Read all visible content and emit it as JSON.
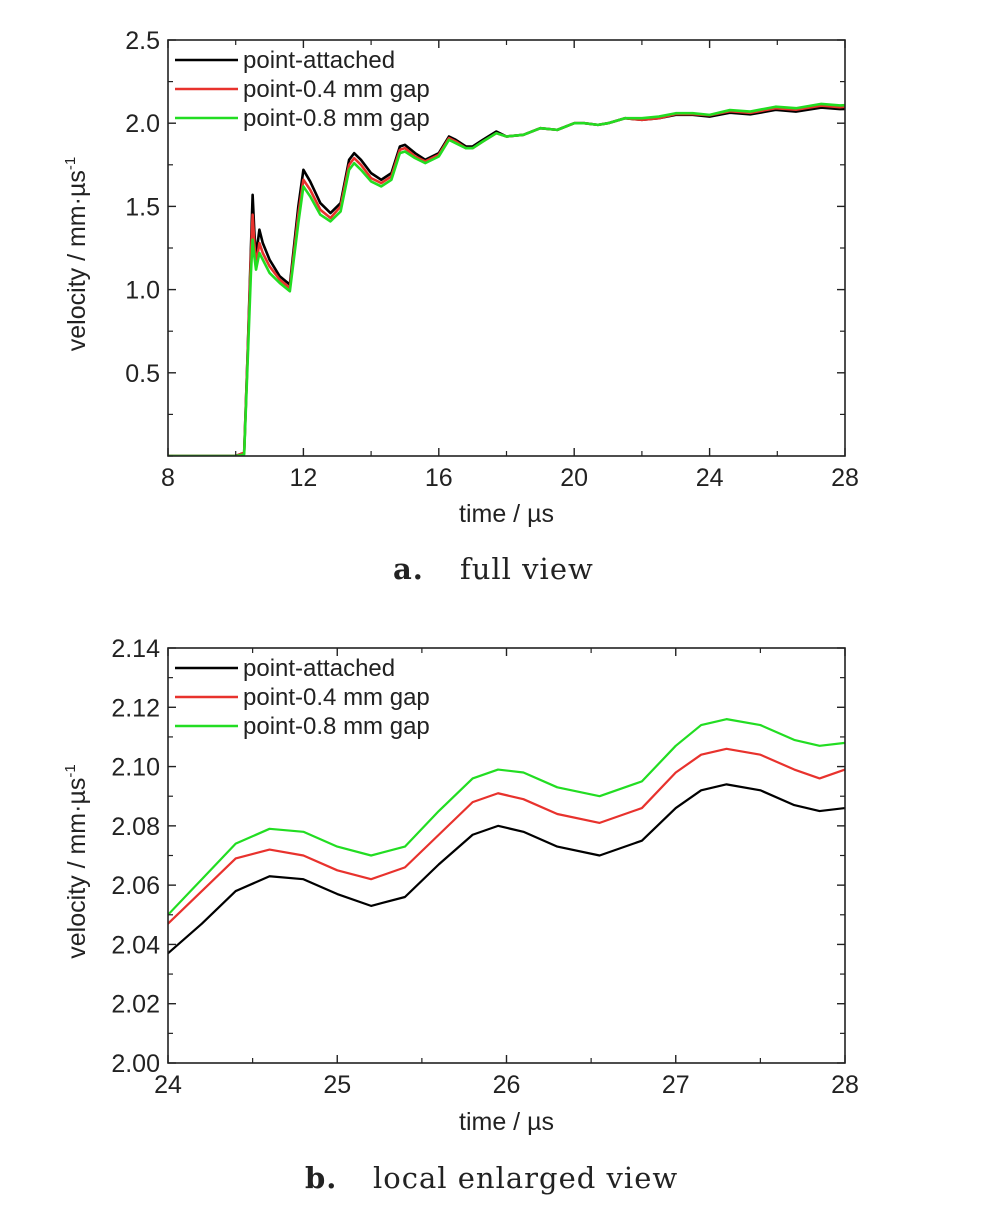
{
  "charts": [
    {
      "type": "line",
      "caption_letter": "a.",
      "caption_text": "full view",
      "xlabel": "time / µs",
      "ylabel": "velocity / mm·µs",
      "ylabel_superscript": "-1",
      "xlim": [
        8,
        28
      ],
      "ylim": [
        0,
        2.5
      ],
      "x_ticks": [
        "8",
        "12",
        "16",
        "20",
        "24",
        "28"
      ],
      "x_tick_values": [
        8,
        12,
        16,
        20,
        24,
        28
      ],
      "x_minor_step": 2,
      "y_ticks": [
        "0.5",
        "1.0",
        "1.5",
        "2.0",
        "2.5"
      ],
      "y_tick_values": [
        0.5,
        1.0,
        1.5,
        2.0,
        2.5
      ],
      "y_minor_step": 0.25,
      "legend_position": "top-left",
      "series": [
        {
          "name": "point-attached",
          "color": "#000000",
          "x": [
            8.0,
            10.0,
            10.25,
            10.35,
            10.45,
            10.5,
            10.55,
            10.6,
            10.7,
            10.8,
            11.0,
            11.3,
            11.6,
            11.85,
            12.0,
            12.2,
            12.5,
            12.8,
            13.1,
            13.35,
            13.5,
            13.7,
            14.0,
            14.3,
            14.6,
            14.85,
            15.0,
            15.3,
            15.6,
            16.0,
            16.3,
            16.5,
            16.8,
            17.0,
            17.3,
            17.7,
            18.0,
            18.5,
            19.0,
            19.5,
            20.0,
            20.3,
            20.7,
            21.0,
            21.5,
            22.0,
            22.5,
            23.0,
            23.5,
            24.0,
            24.6,
            25.2,
            25.95,
            26.55,
            27.3,
            27.85,
            28.0
          ],
          "y": [
            0.0,
            0.0,
            0.02,
            0.6,
            1.25,
            1.57,
            1.35,
            1.2,
            1.36,
            1.28,
            1.18,
            1.08,
            1.03,
            1.5,
            1.72,
            1.65,
            1.52,
            1.46,
            1.52,
            1.78,
            1.82,
            1.78,
            1.7,
            1.66,
            1.7,
            1.86,
            1.87,
            1.82,
            1.78,
            1.82,
            1.92,
            1.9,
            1.86,
            1.86,
            1.9,
            1.95,
            1.92,
            1.93,
            1.97,
            1.96,
            2.0,
            2.0,
            1.99,
            2.0,
            2.03,
            2.02,
            2.03,
            2.05,
            2.05,
            2.04,
            2.063,
            2.053,
            2.08,
            2.07,
            2.094,
            2.085,
            2.086
          ]
        },
        {
          "name": "point-0.4 mm gap",
          "color": "#e8322d",
          "x": [
            8.0,
            10.0,
            10.25,
            10.35,
            10.45,
            10.5,
            10.55,
            10.6,
            10.7,
            10.8,
            11.0,
            11.3,
            11.6,
            11.85,
            12.0,
            12.2,
            12.5,
            12.8,
            13.1,
            13.35,
            13.5,
            13.7,
            14.0,
            14.3,
            14.6,
            14.85,
            15.0,
            15.3,
            15.6,
            16.0,
            16.3,
            16.5,
            16.8,
            17.0,
            17.3,
            17.7,
            18.0,
            18.5,
            19.0,
            19.5,
            20.0,
            20.3,
            20.7,
            21.0,
            21.5,
            22.0,
            22.5,
            23.0,
            23.5,
            24.0,
            24.6,
            25.2,
            25.95,
            26.55,
            27.3,
            27.85,
            28.0
          ],
          "y": [
            0.0,
            0.0,
            0.02,
            0.6,
            1.2,
            1.45,
            1.28,
            1.15,
            1.28,
            1.22,
            1.14,
            1.06,
            1.01,
            1.45,
            1.66,
            1.6,
            1.48,
            1.43,
            1.5,
            1.75,
            1.79,
            1.75,
            1.67,
            1.64,
            1.68,
            1.84,
            1.85,
            1.8,
            1.77,
            1.81,
            1.91,
            1.89,
            1.85,
            1.85,
            1.89,
            1.94,
            1.92,
            1.93,
            1.97,
            1.96,
            2.0,
            2.0,
            1.99,
            2.0,
            2.03,
            2.02,
            2.03,
            2.055,
            2.055,
            2.048,
            2.072,
            2.062,
            2.09,
            2.081,
            2.106,
            2.096,
            2.099
          ]
        },
        {
          "name": "point-0.8 mm gap",
          "color": "#22dd22",
          "x": [
            8.0,
            10.0,
            10.25,
            10.35,
            10.45,
            10.5,
            10.55,
            10.6,
            10.7,
            10.8,
            11.0,
            11.3,
            11.6,
            11.85,
            12.0,
            12.2,
            12.5,
            12.8,
            13.1,
            13.35,
            13.5,
            13.7,
            14.0,
            14.3,
            14.6,
            14.85,
            15.0,
            15.3,
            15.6,
            16.0,
            16.3,
            16.5,
            16.8,
            17.0,
            17.3,
            17.7,
            18.0,
            18.5,
            19.0,
            19.5,
            20.0,
            20.3,
            20.7,
            21.0,
            21.5,
            22.0,
            22.5,
            23.0,
            23.5,
            24.0,
            24.6,
            25.2,
            25.95,
            26.55,
            27.3,
            27.85,
            28.0
          ],
          "y": [
            0.0,
            0.0,
            0.01,
            0.55,
            1.1,
            1.3,
            1.2,
            1.12,
            1.22,
            1.18,
            1.1,
            1.04,
            0.99,
            1.4,
            1.62,
            1.56,
            1.45,
            1.41,
            1.47,
            1.72,
            1.76,
            1.72,
            1.65,
            1.62,
            1.66,
            1.82,
            1.83,
            1.79,
            1.76,
            1.8,
            1.9,
            1.88,
            1.85,
            1.85,
            1.89,
            1.94,
            1.92,
            1.93,
            1.97,
            1.96,
            2.0,
            2.0,
            1.99,
            2.0,
            2.03,
            2.03,
            2.04,
            2.06,
            2.06,
            2.05,
            2.079,
            2.07,
            2.099,
            2.09,
            2.116,
            2.107,
            2.108
          ]
        }
      ]
    },
    {
      "type": "line",
      "caption_letter": "b.",
      "caption_text": "local enlarged view",
      "xlabel": "time / µs",
      "ylabel": "velocity / mm·µs",
      "ylabel_superscript": "-1",
      "xlim": [
        24,
        28
      ],
      "ylim": [
        2.0,
        2.14
      ],
      "x_ticks": [
        "24",
        "25",
        "26",
        "27",
        "28"
      ],
      "x_tick_values": [
        24,
        25,
        26,
        27,
        28
      ],
      "x_minor_step": 0.5,
      "y_ticks": [
        "2.00",
        "2.02",
        "2.04",
        "2.06",
        "2.08",
        "2.10",
        "2.12",
        "2.14"
      ],
      "y_tick_values": [
        2.0,
        2.02,
        2.04,
        2.06,
        2.08,
        2.1,
        2.12,
        2.14
      ],
      "y_minor_step": 0.01,
      "legend_position": "top-left",
      "series": [
        {
          "name": "point-attached",
          "color": "#000000",
          "x": [
            24.0,
            24.2,
            24.4,
            24.6,
            24.8,
            25.0,
            25.2,
            25.4,
            25.6,
            25.8,
            25.95,
            26.1,
            26.3,
            26.55,
            26.8,
            27.0,
            27.15,
            27.3,
            27.5,
            27.7,
            27.85,
            28.0
          ],
          "y": [
            2.037,
            2.047,
            2.058,
            2.063,
            2.062,
            2.057,
            2.053,
            2.056,
            2.067,
            2.077,
            2.08,
            2.078,
            2.073,
            2.07,
            2.075,
            2.086,
            2.092,
            2.094,
            2.092,
            2.087,
            2.085,
            2.086
          ]
        },
        {
          "name": "point-0.4 mm gap",
          "color": "#e8322d",
          "x": [
            24.0,
            24.2,
            24.4,
            24.6,
            24.8,
            25.0,
            25.2,
            25.4,
            25.6,
            25.8,
            25.95,
            26.1,
            26.3,
            26.55,
            26.8,
            27.0,
            27.15,
            27.3,
            27.5,
            27.7,
            27.85,
            28.0
          ],
          "y": [
            2.047,
            2.058,
            2.069,
            2.072,
            2.07,
            2.065,
            2.062,
            2.066,
            2.077,
            2.088,
            2.091,
            2.089,
            2.084,
            2.081,
            2.086,
            2.098,
            2.104,
            2.106,
            2.104,
            2.099,
            2.096,
            2.099
          ]
        },
        {
          "name": "point-0.8 mm gap",
          "color": "#22dd22",
          "x": [
            24.0,
            24.2,
            24.4,
            24.6,
            24.8,
            25.0,
            25.2,
            25.4,
            25.6,
            25.8,
            25.95,
            26.1,
            26.3,
            26.55,
            26.8,
            27.0,
            27.15,
            27.3,
            27.5,
            27.7,
            27.85,
            28.0
          ],
          "y": [
            2.05,
            2.062,
            2.074,
            2.079,
            2.078,
            2.073,
            2.07,
            2.073,
            2.085,
            2.096,
            2.099,
            2.098,
            2.093,
            2.09,
            2.095,
            2.107,
            2.114,
            2.116,
            2.114,
            2.109,
            2.107,
            2.108
          ]
        }
      ]
    }
  ]
}
